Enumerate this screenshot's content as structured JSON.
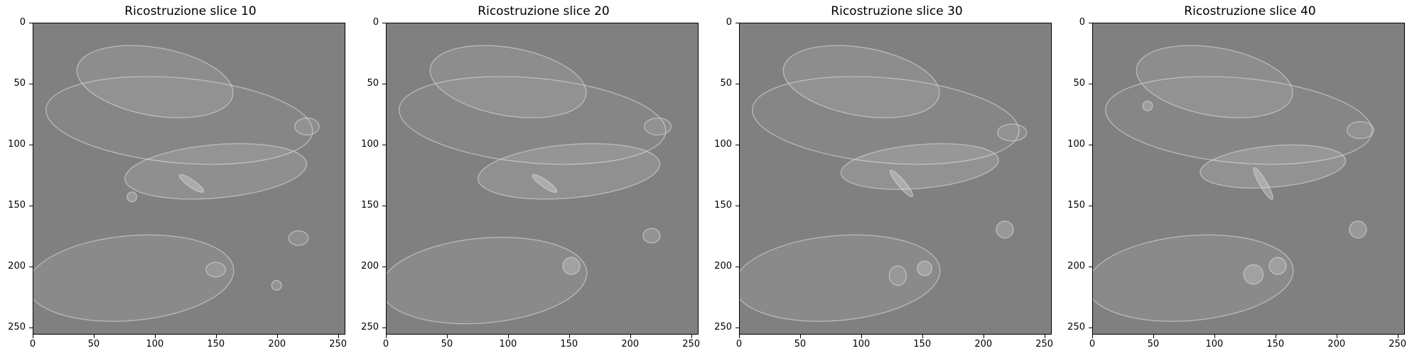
{
  "figure": {
    "panels": [
      {
        "title": "Ricostruzione slice 10"
      },
      {
        "title": "Ricostruzione slice 20"
      },
      {
        "title": "Ricostruzione slice 30"
      },
      {
        "title": "Ricostruzione slice 40"
      }
    ],
    "yticks": [
      "0",
      "50",
      "100",
      "150",
      "200",
      "250"
    ],
    "xticks": [
      "0",
      "50",
      "100",
      "150",
      "200",
      "250"
    ],
    "colormap": "gray",
    "background_color": "#808080"
  }
}
